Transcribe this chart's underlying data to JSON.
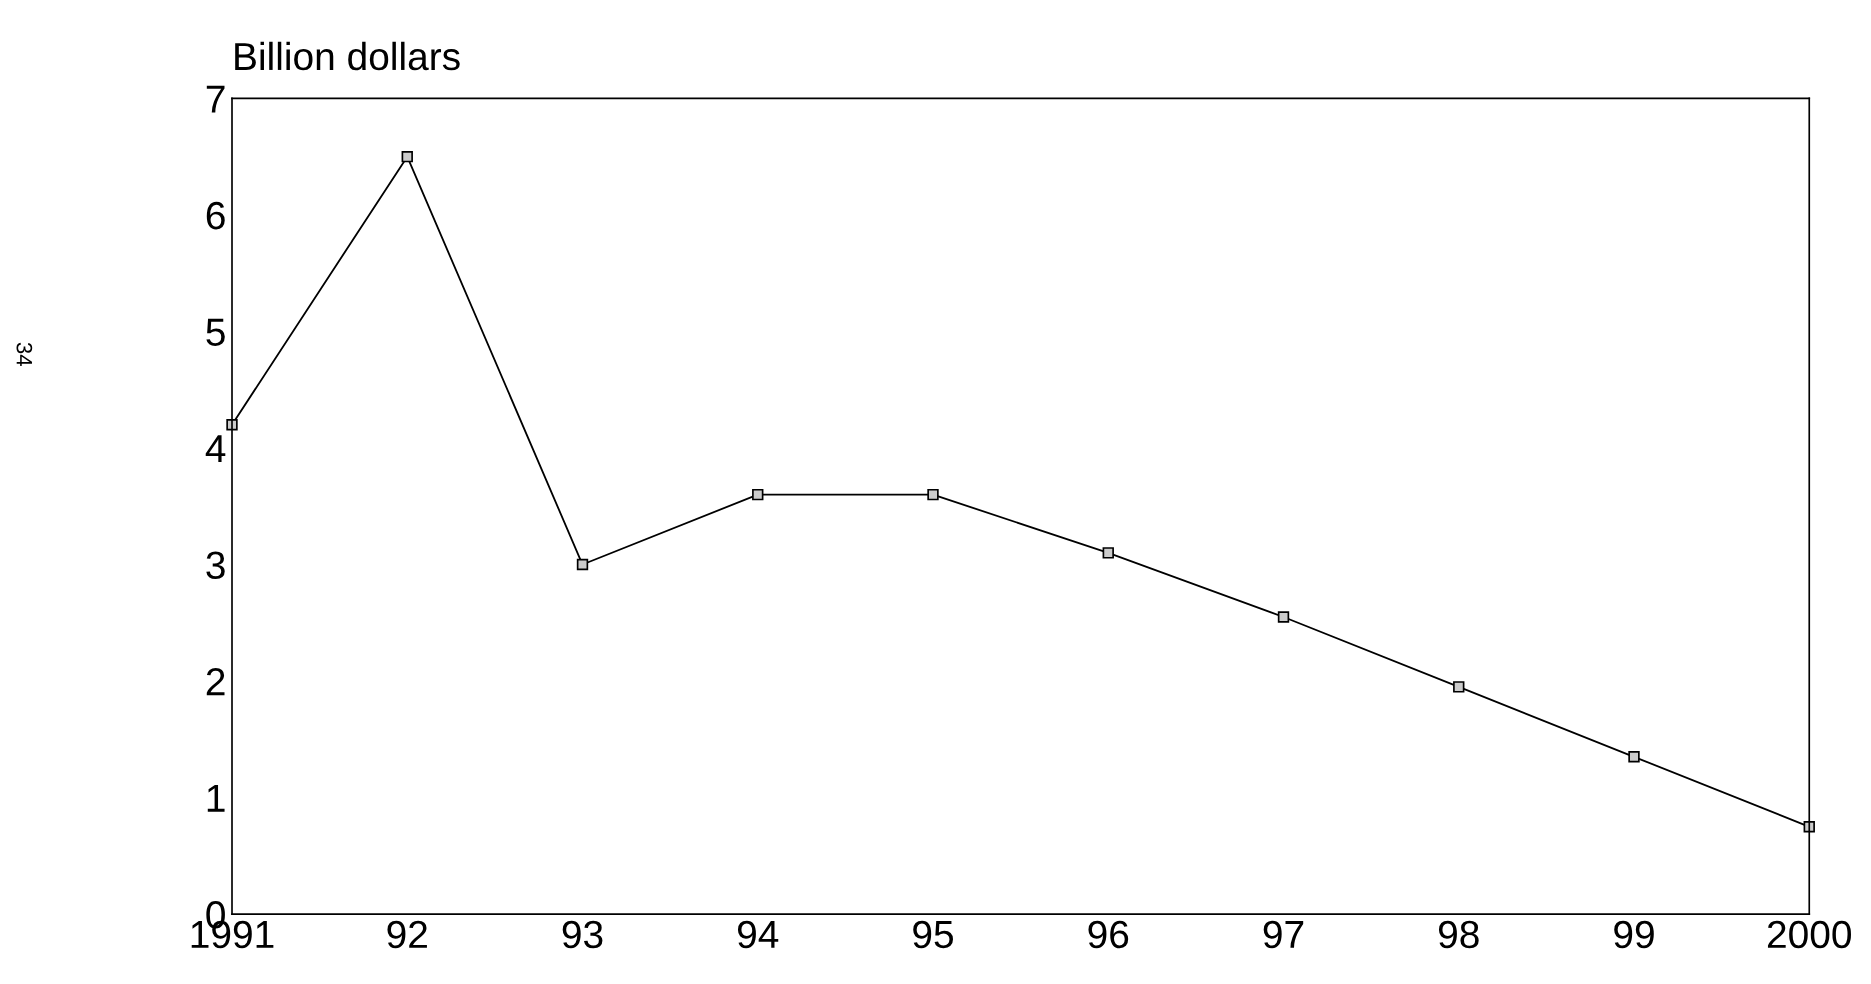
{
  "chart_data": {
    "type": "line",
    "ylabel": "Billion dollars",
    "x": [
      1991,
      1992,
      1993,
      1994,
      1995,
      1996,
      1997,
      1998,
      1999,
      2000
    ],
    "series": [
      {
        "color": "#000000",
        "values": [
          4.2,
          6.5,
          3.0,
          3.6,
          3.6,
          3.1,
          2.55,
          1.95,
          1.35,
          0.75
        ]
      }
    ],
    "xlim": [
      1991,
      2000
    ],
    "xticks": [
      1991,
      {
        "value": 1992,
        "label": "92"
      },
      {
        "value": 1993,
        "label": "93"
      },
      {
        "value": 1994,
        "label": "94"
      },
      {
        "value": 1995,
        "label": "95"
      },
      {
        "value": 1996,
        "label": "96"
      },
      {
        "value": 1997,
        "label": "97"
      },
      {
        "value": 1998,
        "label": "98"
      },
      {
        "value": 1999,
        "label": "99"
      },
      2000
    ],
    "ylim": [
      0,
      7
    ],
    "yticks": [
      0,
      1,
      2,
      3,
      4,
      5,
      6,
      7
    ],
    "marker": "square",
    "line_style": "solid",
    "grid": false,
    "legend": false,
    "annotations": [
      "34"
    ]
  }
}
